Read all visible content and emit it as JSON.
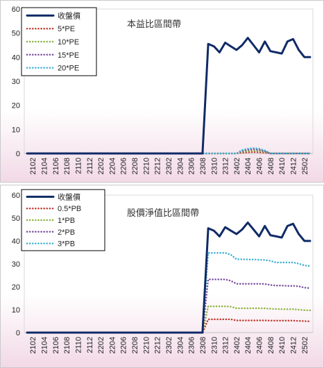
{
  "chart_data": [
    {
      "type": "line",
      "title": "本益比區間帶",
      "x": [
        "2101",
        "2102",
        "2103",
        "2104",
        "2105",
        "2106",
        "2107",
        "2108",
        "2109",
        "2110",
        "2111",
        "2112",
        "2201",
        "2202",
        "2203",
        "2204",
        "2205",
        "2206",
        "2207",
        "2208",
        "2209",
        "2210",
        "2211",
        "2212",
        "2301",
        "2302",
        "2303",
        "2304",
        "2305",
        "2306",
        "2307",
        "2308",
        "2309",
        "2310",
        "2311",
        "2312",
        "2401",
        "2402",
        "2403",
        "2404",
        "2405",
        "2406",
        "2407",
        "2408",
        "2409",
        "2410",
        "2411",
        "2412",
        "2501",
        "2502",
        "2503"
      ],
      "xticks": [
        "2102",
        "2104",
        "2106",
        "2108",
        "2110",
        "2112",
        "2202",
        "2204",
        "2206",
        "2208",
        "2210",
        "2212",
        "2302",
        "2304",
        "2306",
        "2308",
        "2310",
        "2312",
        "2402",
        "2404",
        "2406",
        "2408",
        "2410",
        "2412",
        "2502"
      ],
      "ylim": [
        0,
        60
      ],
      "yticks": [
        0,
        10,
        20,
        30,
        40,
        50,
        60
      ],
      "legend_position": "top-left",
      "series": [
        {
          "name": "收盤價",
          "color": "#0f2a66",
          "style": "solid",
          "values": [
            0,
            0,
            0,
            0,
            0,
            0,
            0,
            0,
            0,
            0,
            0,
            0,
            0,
            0,
            0,
            0,
            0,
            0,
            0,
            0,
            0,
            0,
            0,
            0,
            0,
            0,
            0,
            0,
            0,
            0,
            0,
            0,
            45.5,
            44.5,
            42,
            46,
            44.5,
            43,
            45,
            48,
            45,
            42,
            46.5,
            42.5,
            42,
            41.5,
            46.5,
            47.5,
            43,
            40,
            40
          ]
        },
        {
          "name": "5*PE",
          "color": "#c0392b",
          "style": "dotted",
          "values": [
            0,
            0,
            0,
            0,
            0,
            0,
            0,
            0,
            0,
            0,
            0,
            0,
            0,
            0,
            0,
            0,
            0,
            0,
            0,
            0,
            0,
            0,
            0,
            0,
            0,
            0,
            0,
            0,
            0,
            0,
            0,
            0,
            0,
            0,
            0,
            0,
            0,
            0,
            0.3,
            0.5,
            0.6,
            0.5,
            0.3,
            0,
            0,
            0,
            0,
            0,
            0,
            0,
            0
          ]
        },
        {
          "name": "10*PE",
          "color": "#8db33f",
          "style": "dotted",
          "values": [
            0,
            0,
            0,
            0,
            0,
            0,
            0,
            0,
            0,
            0,
            0,
            0,
            0,
            0,
            0,
            0,
            0,
            0,
            0,
            0,
            0,
            0,
            0,
            0,
            0,
            0,
            0,
            0,
            0,
            0,
            0,
            0,
            0,
            0,
            0,
            0,
            0,
            0,
            0.7,
            1.0,
            1.1,
            1.0,
            0.6,
            0,
            0,
            0,
            0,
            0,
            0,
            0,
            0
          ]
        },
        {
          "name": "15*PE",
          "color": "#7a4f9c",
          "style": "dotted",
          "values": [
            0,
            0,
            0,
            0,
            0,
            0,
            0,
            0,
            0,
            0,
            0,
            0,
            0,
            0,
            0,
            0,
            0,
            0,
            0,
            0,
            0,
            0,
            0,
            0,
            0,
            0,
            0,
            0,
            0,
            0,
            0,
            0,
            0,
            0,
            0,
            0,
            0,
            0,
            1.0,
            1.5,
            1.7,
            1.5,
            0.9,
            0,
            0,
            0,
            0,
            0,
            0,
            0,
            0
          ]
        },
        {
          "name": "20*PE",
          "color": "#3fb0cf",
          "style": "dotted",
          "values": [
            0,
            0,
            0,
            0,
            0,
            0,
            0,
            0,
            0,
            0,
            0,
            0,
            0,
            0,
            0,
            0,
            0,
            0,
            0,
            0,
            0,
            0,
            0,
            0,
            0,
            0,
            0,
            0,
            0,
            0,
            0,
            0,
            0,
            0,
            0,
            0,
            0,
            0,
            1.4,
            2.0,
            2.2,
            2.0,
            1.2,
            0,
            0,
            0,
            0,
            0,
            0,
            0,
            0
          ]
        }
      ]
    },
    {
      "type": "line",
      "title": "股價淨值比區間帶",
      "x": [
        "2101",
        "2102",
        "2103",
        "2104",
        "2105",
        "2106",
        "2107",
        "2108",
        "2109",
        "2110",
        "2111",
        "2112",
        "2201",
        "2202",
        "2203",
        "2204",
        "2205",
        "2206",
        "2207",
        "2208",
        "2209",
        "2210",
        "2211",
        "2212",
        "2301",
        "2302",
        "2303",
        "2304",
        "2305",
        "2306",
        "2307",
        "2308",
        "2309",
        "2310",
        "2311",
        "2312",
        "2401",
        "2402",
        "2403",
        "2404",
        "2405",
        "2406",
        "2407",
        "2408",
        "2409",
        "2410",
        "2411",
        "2412",
        "2501",
        "2502",
        "2503"
      ],
      "xticks": [
        "2102",
        "2104",
        "2106",
        "2108",
        "2110",
        "2112",
        "2202",
        "2204",
        "2206",
        "2208",
        "2210",
        "2212",
        "2302",
        "2304",
        "2306",
        "2308",
        "2310",
        "2312",
        "2402",
        "2404",
        "2406",
        "2408",
        "2410",
        "2412",
        "2502"
      ],
      "ylim": [
        0,
        60
      ],
      "yticks": [
        0,
        10,
        20,
        30,
        40,
        50,
        60
      ],
      "legend_position": "top-left",
      "series": [
        {
          "name": "收盤價",
          "color": "#0f2a66",
          "style": "solid",
          "values": [
            0,
            0,
            0,
            0,
            0,
            0,
            0,
            0,
            0,
            0,
            0,
            0,
            0,
            0,
            0,
            0,
            0,
            0,
            0,
            0,
            0,
            0,
            0,
            0,
            0,
            0,
            0,
            0,
            0,
            0,
            0,
            0,
            45.5,
            44.5,
            42,
            46,
            44.5,
            43,
            45,
            48,
            45,
            42,
            46.5,
            42.5,
            42,
            41.5,
            46.5,
            47.5,
            43,
            40,
            40
          ]
        },
        {
          "name": "0.5*PB",
          "color": "#c0392b",
          "style": "dotted",
          "values": [
            0,
            0,
            0,
            0,
            0,
            0,
            0,
            0,
            0,
            0,
            0,
            0,
            0,
            0,
            0,
            0,
            0,
            0,
            0,
            0,
            0,
            0,
            0,
            0,
            0,
            0,
            0,
            0,
            0,
            0,
            0,
            0,
            5.8,
            5.8,
            5.8,
            5.8,
            5.8,
            5.3,
            5.3,
            5.3,
            5.3,
            5.3,
            5.3,
            5.2,
            5.2,
            5.2,
            5.2,
            5.2,
            5.1,
            5.0,
            4.9
          ]
        },
        {
          "name": "1*PB",
          "color": "#8db33f",
          "style": "dotted",
          "values": [
            0,
            0,
            0,
            0,
            0,
            0,
            0,
            0,
            0,
            0,
            0,
            0,
            0,
            0,
            0,
            0,
            0,
            0,
            0,
            0,
            0,
            0,
            0,
            0,
            0,
            0,
            0,
            0,
            0,
            0,
            0,
            0,
            11.5,
            11.5,
            11.5,
            11.5,
            11.3,
            10.6,
            10.6,
            10.6,
            10.6,
            10.6,
            10.6,
            10.4,
            10.3,
            10.2,
            10.2,
            10.2,
            10.0,
            9.8,
            9.7
          ]
        },
        {
          "name": "2*PB",
          "color": "#7a4f9c",
          "style": "dotted",
          "values": [
            0,
            0,
            0,
            0,
            0,
            0,
            0,
            0,
            0,
            0,
            0,
            0,
            0,
            0,
            0,
            0,
            0,
            0,
            0,
            0,
            0,
            0,
            0,
            0,
            0,
            0,
            0,
            0,
            0,
            0,
            0,
            0,
            23.2,
            23.2,
            23.2,
            23.2,
            22.6,
            21.3,
            21.3,
            21.3,
            21.3,
            21.3,
            21.2,
            20.8,
            20.5,
            20.5,
            20.4,
            20.4,
            20.2,
            19.6,
            19.4
          ]
        },
        {
          "name": "3*PB",
          "color": "#3fb0cf",
          "style": "dotted",
          "values": [
            0,
            0,
            0,
            0,
            0,
            0,
            0,
            0,
            0,
            0,
            0,
            0,
            0,
            0,
            0,
            0,
            0,
            0,
            0,
            0,
            0,
            0,
            0,
            0,
            0,
            0,
            0,
            0,
            0,
            0,
            0,
            0,
            34.8,
            34.8,
            34.8,
            34.8,
            34.0,
            32.0,
            32.0,
            31.9,
            31.9,
            31.8,
            31.7,
            31.3,
            30.6,
            30.6,
            30.6,
            30.6,
            30.1,
            29.3,
            29.0
          ]
        }
      ]
    }
  ]
}
